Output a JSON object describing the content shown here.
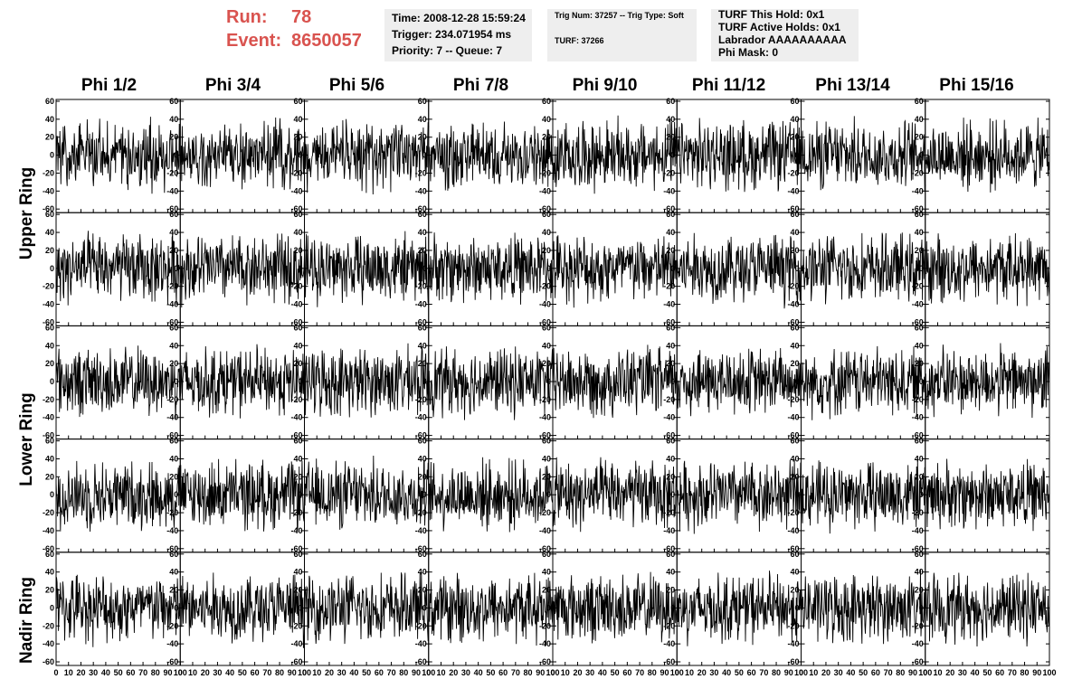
{
  "header": {
    "run_label": "Run:",
    "run_value": "78",
    "event_label": "Event:",
    "event_value": "8650057",
    "time_line": "Time: 2008-12-28 15:59:24",
    "trigger_line": "Trigger: 234.071954 ms",
    "priority_line": "Priority: 7 -- Queue: 7",
    "trig_num_line": "Trig Num: 37257 -- Trig Type: Soft",
    "turf_line": "TURF: 37266",
    "turf_hold_line": "TURF This Hold: 0x1",
    "turf_active_line": "TURF Active Holds: 0x1",
    "labrador_line": "Labrador AAAAAAAAAA",
    "phi_mask_line": "Phi Mask: 0"
  },
  "columns": [
    "Phi 1/2",
    "Phi 3/4",
    "Phi 5/6",
    "Phi 7/8",
    "Phi 9/10",
    "Phi 11/12",
    "Phi 13/14",
    "Phi 15/16"
  ],
  "ring_labels": [
    "Upper Ring",
    "Lower Ring",
    "Nadir Ring"
  ],
  "chart_data": {
    "type": "line",
    "title": "",
    "xlabel": "",
    "ylabel": "",
    "xlim": [
      0,
      100
    ],
    "ylim": [
      -60,
      60
    ],
    "x_ticks": [
      0,
      10,
      20,
      30,
      40,
      50,
      60,
      70,
      80,
      90,
      100
    ],
    "y_ticks": [
      -60,
      -40,
      -20,
      0,
      20,
      40,
      60
    ],
    "grid": false,
    "legend": "none",
    "line_color": "#000000",
    "panel_rows": 5,
    "panel_cols": 8,
    "samples_per_trace": 260,
    "trace_amplitude_range": [
      -45,
      45
    ]
  }
}
